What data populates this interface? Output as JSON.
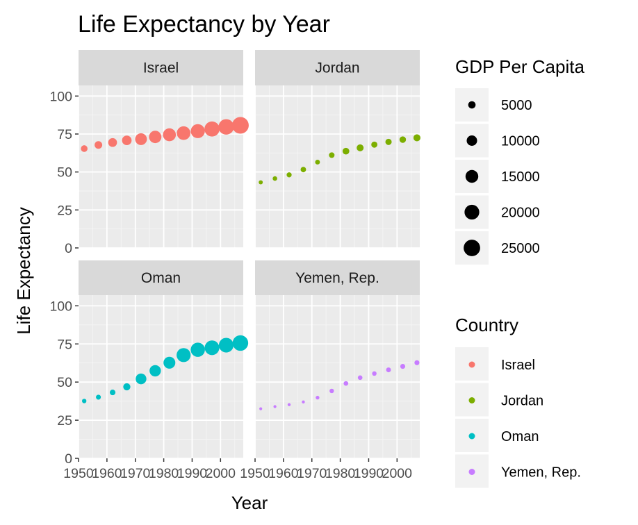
{
  "chart_data": {
    "type": "scatter",
    "title": "Life Expectancy by Year",
    "xlabel": "Year",
    "ylabel": "Life Expectancy",
    "xlim": [
      1950,
      2008
    ],
    "ylim": [
      0,
      107
    ],
    "x_ticks": [
      1950,
      1960,
      1970,
      1980,
      1990,
      2000
    ],
    "x_tick_labels": [
      "1950",
      "1960",
      "1970",
      "1980",
      "1990",
      "2000"
    ],
    "y_ticks": [
      0,
      25,
      50,
      75,
      100
    ],
    "y_tick_labels": [
      "0",
      "25",
      "50",
      "75",
      "100"
    ],
    "grid": true,
    "facets": [
      "Israel",
      "Jordan",
      "Oman",
      "Yemen, Rep."
    ],
    "years": [
      1952,
      1957,
      1962,
      1967,
      1972,
      1977,
      1982,
      1987,
      1992,
      1997,
      2002,
      2007
    ],
    "series": [
      {
        "name": "Israel",
        "color": "#F8766D",
        "life_exp": [
          65.4,
          67.8,
          69.4,
          70.8,
          71.6,
          73.1,
          74.5,
          75.6,
          76.9,
          78.3,
          79.7,
          80.7
        ],
        "gdp_per_capita": [
          4087,
          5386,
          7106,
          8394,
          12787,
          14160,
          15368,
          17122,
          18052,
          20897,
          21906,
          25523
        ]
      },
      {
        "name": "Jordan",
        "color": "#7CAE00",
        "life_exp": [
          43.2,
          45.7,
          48.1,
          51.6,
          56.5,
          61.1,
          63.7,
          65.9,
          68.0,
          69.8,
          71.3,
          72.5
        ],
        "gdp_per_capita": [
          1547,
          1886,
          2348,
          2741,
          2110,
          2852,
          4161,
          4448,
          3431,
          3645,
          3845,
          4519
        ]
      },
      {
        "name": "Oman",
        "color": "#00BFC4",
        "life_exp": [
          37.6,
          40.1,
          43.2,
          46.9,
          52.1,
          57.4,
          62.7,
          67.7,
          71.2,
          72.5,
          74.2,
          75.6
        ],
        "gdp_per_capita": [
          1828,
          2243,
          2924,
          4721,
          10618,
          11848,
          12955,
          18115,
          18617,
          19702,
          19775,
          22316
        ]
      },
      {
        "name": "Yemen, Rep.",
        "color": "#C77CFF",
        "life_exp": [
          32.5,
          33.9,
          35.2,
          36.98,
          39.8,
          44.2,
          49.1,
          52.9,
          55.6,
          58.0,
          60.3,
          62.7
        ],
        "gdp_per_capita": [
          782,
          805,
          826,
          862,
          1265,
          1830,
          1978,
          1972,
          1879,
          2117,
          2235,
          2281
        ]
      }
    ],
    "legends": {
      "size": {
        "title": "GDP Per Capita",
        "breaks": [
          5000,
          10000,
          15000,
          20000,
          25000
        ],
        "labels": [
          "5000",
          "10000",
          "15000",
          "20000",
          "25000"
        ]
      },
      "color": {
        "title": "Country",
        "labels": [
          "Israel",
          "Jordan",
          "Oman",
          "Yemen, Rep."
        ]
      }
    },
    "legend_position": "right"
  }
}
